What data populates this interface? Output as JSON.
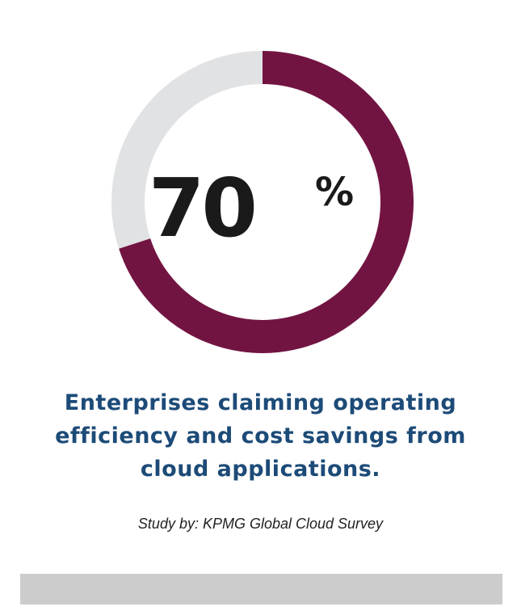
{
  "chart_data": {
    "type": "donut",
    "values": [
      70,
      30
    ],
    "colors": [
      "#721442",
      "#e1e2e4"
    ],
    "unit": "%",
    "title": "Enterprises claiming operating efficiency and cost savings from cloud applications.",
    "source": "Study by: KPMG Global Cloud Survey"
  }
}
